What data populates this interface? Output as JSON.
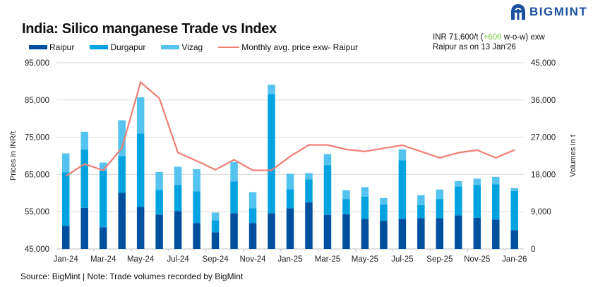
{
  "header": {
    "title": "India: Silico manganese Trade vs Index",
    "brand": "BIGMINT",
    "info_prefix": "INR 71,600/t (",
    "info_change": "+600",
    "info_suffix": " w-o-w) exw",
    "info_line2": "Raipur as on 13 Jan'26",
    "change_color": "#7ac943"
  },
  "footer": {
    "source": "Source: BigMint | Note: Trade volumes recorded by BigMint"
  },
  "chart_data": {
    "type": "bar",
    "stacked": true,
    "title": "India: Silico manganese Trade vs Index",
    "ylabel": "Prices in INR/t",
    "y2label": "Volumes in t",
    "ylim": [
      45000,
      95000
    ],
    "y2lim": [
      0,
      45000
    ],
    "yticks": [
      "45,000",
      "55,000",
      "65,000",
      "75,000",
      "85,000",
      "95,000"
    ],
    "y2ticks": [
      "0",
      "9,000",
      "18,000",
      "27,000",
      "36,000",
      "45,000"
    ],
    "grid": true,
    "legend_position": "top",
    "categories": [
      "Jan-24",
      "Feb-24",
      "Mar-24",
      "Apr-24",
      "May-24",
      "Jun-24",
      "Jul-24",
      "Aug-24",
      "Sep-24",
      "Oct-24",
      "Nov-24",
      "Dec-24",
      "Jan-25",
      "Feb-25",
      "Mar-25",
      "Apr-25",
      "May-25",
      "Jun-25",
      "Jul-25",
      "Aug-25",
      "Sep-25",
      "Oct-25",
      "Nov-25",
      "Dec-25",
      "Jan-26"
    ],
    "xtick_labels": [
      "Jan-24",
      "Mar-24",
      "May-24",
      "Jul-24",
      "Sep-24",
      "Nov-24",
      "Jan-25",
      "Mar-25",
      "May-25",
      "Jul-25",
      "Sep-25",
      "Nov-25",
      "Jan-26"
    ],
    "series": [
      {
        "name": "Raipur",
        "axis": "right",
        "kind": "bar",
        "color": "#0050a0",
        "values": [
          5560,
          9930,
          5220,
          13560,
          10160,
          8290,
          9140,
          6240,
          4030,
          8630,
          6240,
          8630,
          9820,
          11290,
          8230,
          8400,
          7260,
          6870,
          7260,
          7430,
          7430,
          8120,
          7550,
          7090,
          4540
        ]
      },
      {
        "name": "Durgapur",
        "axis": "right",
        "kind": "bar",
        "color": "#00a3e0",
        "values": [
          12940,
          14020,
          13620,
          8860,
          17700,
          5950,
          6300,
          7660,
          2890,
          7660,
          3580,
          28770,
          4600,
          5510,
          11970,
          3630,
          5400,
          3910,
          14130,
          3180,
          4600,
          6980,
          7890,
          8520,
          9480
        ]
      },
      {
        "name": "Vizag",
        "axis": "right",
        "kind": "bar",
        "color": "#55c3f0",
        "values": [
          4600,
          4370,
          2040,
          8680,
          8800,
          4370,
          4420,
          5390,
          1880,
          4710,
          3910,
          2320,
          3750,
          1530,
          2730,
          2160,
          2270,
          1530,
          2670,
          2380,
          2330,
          1300,
          1530,
          1810,
          680
        ]
      },
      {
        "name": "Monthly avg. price exw- Raipur",
        "axis": "left",
        "kind": "line",
        "color": "#f07f74",
        "values": [
          64550,
          67820,
          66120,
          72110,
          89770,
          85480,
          70850,
          68640,
          66250,
          68960,
          66120,
          66120,
          69840,
          72930,
          72930,
          71730,
          71170,
          72050,
          72870,
          71170,
          69460,
          70850,
          71540,
          69460,
          71600
        ]
      }
    ]
  }
}
